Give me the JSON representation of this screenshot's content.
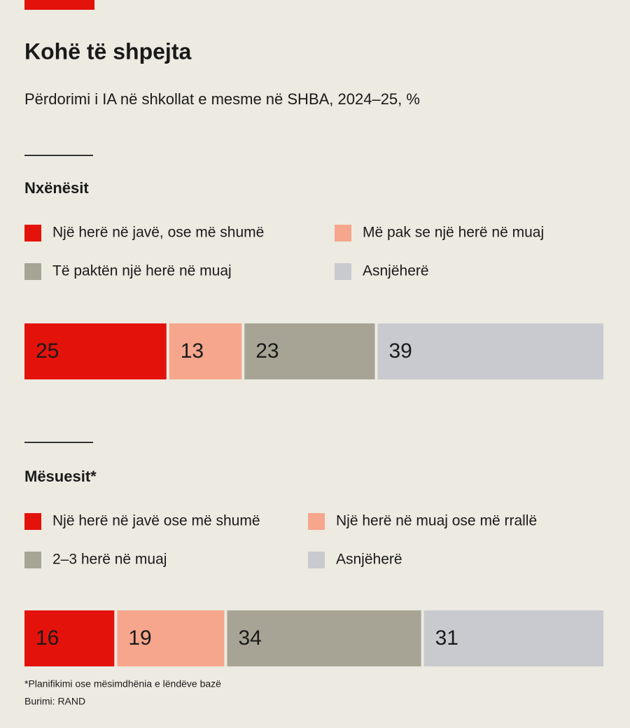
{
  "title": "Kohë të shpejta",
  "subtitle": "Përdorimi i IA në shkollat e mesme në SHBA, 2024–25, %",
  "footnote": "*Planifikimi ose mësimdhënia e lëndëve bazë",
  "source": "Burimi: RAND",
  "chart_data": [
    {
      "type": "stacked-bar",
      "title": "Nxënësit",
      "xlim": [
        0,
        100
      ],
      "series": [
        {
          "name": "Një herë në javë, ose më shumë",
          "color": "#e3120b",
          "values": [
            25
          ]
        },
        {
          "name": "Më pak se një herë në muaj",
          "color": "#f6a68c",
          "values": [
            13
          ]
        },
        {
          "name": "Të paktën një herë në muaj",
          "color": "#a8a495",
          "values": [
            23
          ]
        },
        {
          "name": "Asnjëherë",
          "color": "#c9cacf",
          "values": [
            39
          ]
        }
      ]
    },
    {
      "type": "stacked-bar",
      "title": "Mësuesit*",
      "xlim": [
        0,
        100
      ],
      "series": [
        {
          "name": "Një herë në javë ose më shumë",
          "color": "#e3120b",
          "values": [
            16
          ]
        },
        {
          "name": "Një herë në muaj ose më rrallë",
          "color": "#f6a68c",
          "values": [
            19
          ]
        },
        {
          "name": "2–3 herë në muaj",
          "color": "#a8a495",
          "values": [
            34
          ]
        },
        {
          "name": "Asnjëherë",
          "color": "#c9cacf",
          "values": [
            31
          ]
        }
      ]
    }
  ]
}
